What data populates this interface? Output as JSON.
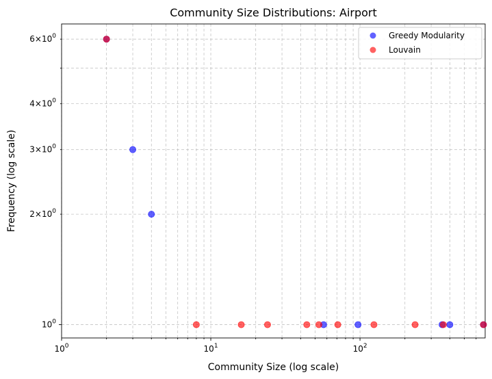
{
  "chart_data": {
    "type": "scatter",
    "title": "Community Size Distributions: Airport",
    "xlabel": "Community Size (log scale)",
    "ylabel": "Frequency (log scale)",
    "xscale": "log",
    "yscale": "log",
    "xlim": [
      1,
      690
    ],
    "ylim": [
      0.92,
      6.6
    ],
    "grid": true,
    "legend_position": "top-right",
    "x_ticks": [
      {
        "value": 1,
        "base": "10",
        "exp": "0"
      },
      {
        "value": 10,
        "base": "10",
        "exp": "1"
      },
      {
        "value": 100,
        "base": "10",
        "exp": "2"
      }
    ],
    "y_ticks": [
      {
        "value": 1,
        "mant": "10",
        "exp": "0"
      },
      {
        "value": 2,
        "mant": "2×10",
        "exp": "0"
      },
      {
        "value": 3,
        "mant": "3×10",
        "exp": "0"
      },
      {
        "value": 4,
        "mant": "4×10",
        "exp": "0"
      },
      {
        "value": 6,
        "mant": "6×10",
        "exp": "0"
      }
    ],
    "series": [
      {
        "name": "Greedy Modularity",
        "color": "#0000ff",
        "points": [
          {
            "x": 2,
            "y": 6
          },
          {
            "x": 3,
            "y": 3
          },
          {
            "x": 4,
            "y": 2
          },
          {
            "x": 57,
            "y": 1
          },
          {
            "x": 97,
            "y": 1
          },
          {
            "x": 355,
            "y": 1
          },
          {
            "x": 400,
            "y": 1
          },
          {
            "x": 672,
            "y": 1
          }
        ]
      },
      {
        "name": "Louvain",
        "color": "#ff0000",
        "points": [
          {
            "x": 2,
            "y": 6
          },
          {
            "x": 8,
            "y": 1
          },
          {
            "x": 16,
            "y": 1
          },
          {
            "x": 24,
            "y": 1
          },
          {
            "x": 44,
            "y": 1
          },
          {
            "x": 53,
            "y": 1
          },
          {
            "x": 71,
            "y": 1
          },
          {
            "x": 124,
            "y": 1
          },
          {
            "x": 234,
            "y": 1
          },
          {
            "x": 362,
            "y": 1
          },
          {
            "x": 672,
            "y": 1
          }
        ]
      }
    ]
  }
}
